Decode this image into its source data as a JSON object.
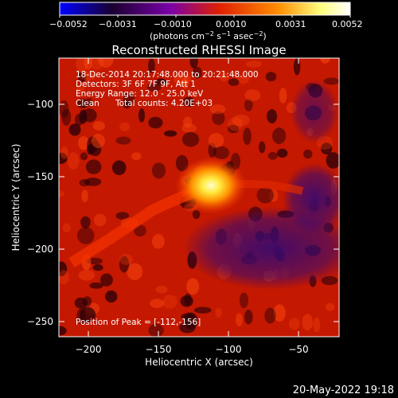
{
  "colorbar": {
    "ticks": [
      "−0.0052",
      "−0.0031",
      "−0.0010",
      "0.0010",
      "0.0031",
      "0.0052"
    ],
    "unit_main": "(photons cm",
    "unit_sup1": "−2",
    "unit_mid": " s",
    "unit_sup2": "−1",
    "unit_mid2": " asec",
    "unit_sup3": "−2",
    "unit_end": ")",
    "colors": [
      "#0000ff",
      "#1a0030",
      "#7a00a8",
      "#e02000",
      "#ff8c00",
      "#ffff80",
      "#ffffff"
    ]
  },
  "title": "Reconstructed RHESSI Image",
  "annotations": {
    "time_range": "18-Dec-2014 20:17:48.000 to 20:21:48.000",
    "detectors": "Detectors: 3F 6F 7F 9F, Att 1",
    "energy": "Energy Range: 12.0 - 25.0 keV",
    "method": "Clean",
    "counts": "Total counts: 4.20E+03",
    "peak": "Position of Peak = [-112,-156]"
  },
  "axes": {
    "xlabel": "Heliocentric X (arcsec)",
    "ylabel": "Heliocentric Y (arcsec)",
    "xticks": [
      "−200",
      "−150",
      "−100",
      "−50"
    ],
    "yticks": [
      "−100",
      "−150",
      "−200",
      "−250"
    ]
  },
  "image": {
    "x_range": [
      -215,
      -22
    ],
    "y_range": [
      -263,
      -70
    ],
    "peak_x": -112,
    "peak_y": -156
  },
  "footer_date": "20-May-2022 19:18"
}
